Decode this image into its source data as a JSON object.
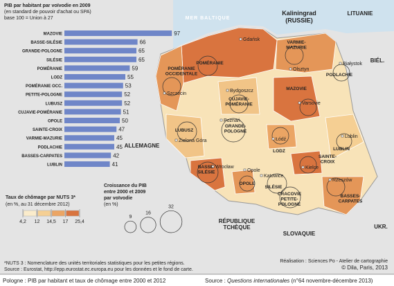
{
  "chart_data": {
    "type": "bar",
    "title": [
      "PIB par habitant par voïvodie en 2009",
      "(en standard de pouvoir d'achat ou SPA)",
      "base 100 = Union à 27"
    ],
    "categories": [
      "MAZOVIE",
      "BASSE-SILÉSIE",
      "GRANDE-POLOGNE",
      "SILÉSIE",
      "POMÉRANIE",
      "LODZ",
      "POMÉRANIE OCC.",
      "PETITE-POLOGNE",
      "LUBUSZ",
      "CUJAVIE-POMÉRANIE",
      "OPOLE",
      "SAINTE-CROIX",
      "VARMIE-MAZURIE",
      "PODLACHIE",
      "BASSES-CARPATES",
      "LUBLIN"
    ],
    "values": [
      97,
      66,
      65,
      65,
      59,
      55,
      53,
      52,
      52,
      51,
      50,
      47,
      45,
      45,
      42,
      41
    ],
    "color": "#6f86c8",
    "xlim": [
      0,
      100
    ]
  },
  "legend_chomage": {
    "title": [
      "Taux de chômage par NUTS 3*",
      "(en %, au 31 décembre 2012)"
    ],
    "ticks": [
      {
        "value": 4.2,
        "label": "4,2"
      },
      12,
      {
        "value": 14.5,
        "label": "14,5"
      },
      17,
      {
        "value": 25.4,
        "label": "25,4"
      }
    ],
    "colors": [
      "#fbeccb",
      "#f5cf93",
      "#eba564",
      "#d9743f"
    ]
  },
  "legend_croissance": {
    "title": [
      "Croissance du PIB",
      "entre 2000 et 2009",
      "par voïvodie",
      "(en %)"
    ],
    "values": [
      9,
      16,
      32
    ]
  },
  "map": {
    "sea": "MER BALTIQUE",
    "countries": [
      [
        "Kaliningrad",
        "(RUSSIE)"
      ],
      [
        "LITUANIE"
      ],
      [
        "BIÉL."
      ],
      [
        "ALLEMAGNE"
      ],
      [
        "RÉPUBLIQUE",
        "TCHÈQUE"
      ],
      [
        "SLOVAQUIE"
      ],
      [
        "UKR."
      ]
    ],
    "regions": [
      [
        "POMÉRANIE"
      ],
      [
        "VARMIE-",
        "MAZURIE"
      ],
      [
        "PODLACHIE"
      ],
      [
        "POMÉRANIE",
        "OCCIDENTALE"
      ],
      [
        "CUJAVIE-",
        "POMÉRANIE"
      ],
      [
        "MAZOVIE"
      ],
      [
        "GRANDE-",
        "POLOGNE"
      ],
      [
        "LUBUSZ"
      ],
      [
        "LODZ"
      ],
      [
        "LUBLIN"
      ],
      [
        "BASSE-",
        "SILÉSIE"
      ],
      [
        "OPOLE"
      ],
      [
        "SILÉSIE"
      ],
      [
        "SAINTE-",
        "CROIX"
      ],
      [
        "CRACOVIE",
        "PETITE-",
        "POLOGNE"
      ],
      [
        "BASSES-",
        "CARPATES"
      ]
    ],
    "cities": [
      "Gdańsk",
      "Olsztyn",
      "Białystok",
      "Szczecin",
      "Bydgoszcz",
      "Varsovie",
      "Poznań",
      "Zielona Góra",
      "Łódź",
      "Lublin",
      "Wrocław",
      "Opole",
      "Katowice",
      "Kielce",
      "Rzeszów"
    ]
  },
  "notes": [
    "*NUTS 3 : Nomenclature des unités territoriales statistiques pour les petites régions.",
    "Source : Eurostat, http://epp.eurostat.ec.europa.eu pour les données et le fond de carte."
  ],
  "credits": [
    "Réalisation : Sciences Po - Atelier de cartographie",
    "© Dila, Paris, 2013"
  ],
  "footer": {
    "title": "Pologne : PIB par habitant et taux de chômage entre 2000 et 2012",
    "source": [
      "Source : ",
      "Questions internationales",
      " (n°64 novembre-décembre 2013)"
    ]
  }
}
